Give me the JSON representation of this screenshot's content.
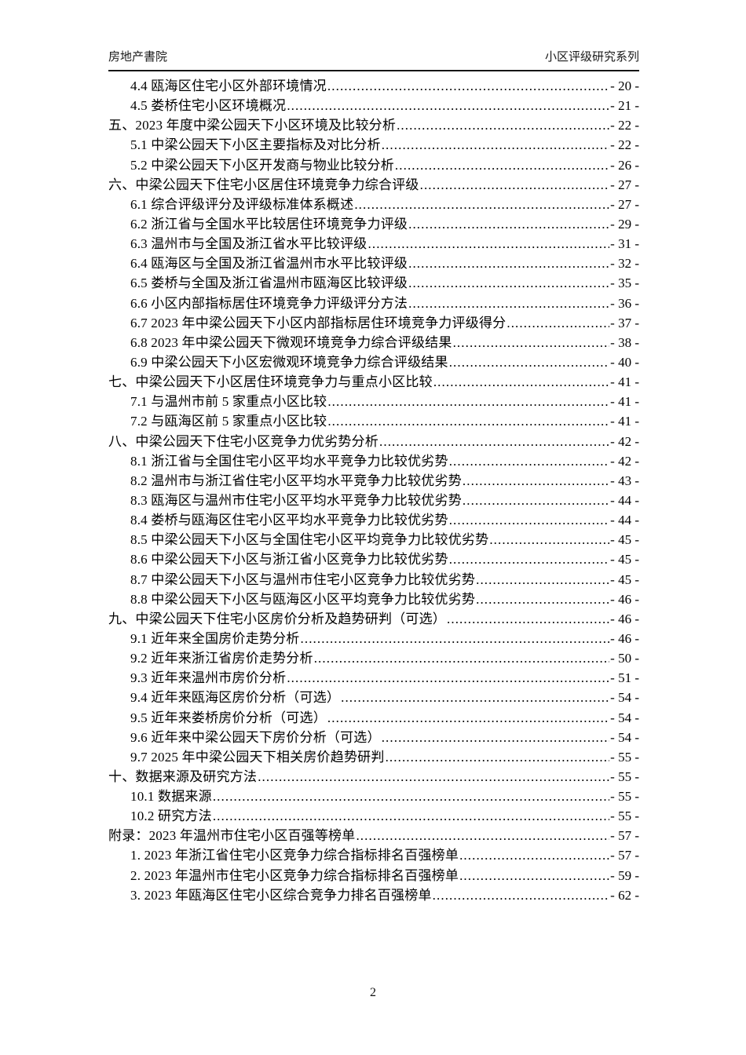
{
  "header": {
    "left": "房地产書院",
    "right": "小区评级研究系列"
  },
  "footer": {
    "page_number": "2"
  },
  "toc": {
    "entries": [
      {
        "level": 2,
        "label": "4.4 瓯海区住宅小区外部环境情况",
        "page": "- 20 -"
      },
      {
        "level": 2,
        "label": "4.5 娄桥住宅小区环境概况",
        "page": "- 21 -"
      },
      {
        "level": 1,
        "label": "五、2023 年度中梁公园天下小区环境及比较分析",
        "page": "- 22 -"
      },
      {
        "level": 2,
        "label": "5.1 中梁公园天下小区主要指标及对比分析",
        "page": "- 22 -"
      },
      {
        "level": 2,
        "label": "5.2 中梁公园天下小区开发商与物业比较分析",
        "page": "- 26 -"
      },
      {
        "level": 1,
        "label": "六、中梁公园天下住宅小区居住环境竞争力综合评级",
        "page": "- 27 -"
      },
      {
        "level": 2,
        "label": "6.1 综合评级评分及评级标准体系概述",
        "page": "- 27 -"
      },
      {
        "level": 2,
        "label": "6.2 浙江省与全国水平比较居住环境竞争力评级",
        "page": "- 29 -"
      },
      {
        "level": 2,
        "label": "6.3 温州市与全国及浙江省水平比较评级",
        "page": "- 31 -"
      },
      {
        "level": 2,
        "label": "6.4 瓯海区与全国及浙江省温州市水平比较评级",
        "page": "- 32 -"
      },
      {
        "level": 2,
        "label": "6.5 娄桥与全国及浙江省温州市瓯海区比较评级",
        "page": "- 35 -"
      },
      {
        "level": 2,
        "label": "6.6 小区内部指标居住环境竞争力评级评分方法",
        "page": "- 36 -"
      },
      {
        "level": 2,
        "label": "6.7 2023 年中梁公园天下小区内部指标居住环境竞争力评级得分",
        "page": "- 37 -"
      },
      {
        "level": 2,
        "label": "6.8 2023 年中梁公园天下微观环境竞争力综合评级结果",
        "page": "- 38 -"
      },
      {
        "level": 2,
        "label": "6.9 中梁公园天下小区宏微观环境竞争力综合评级结果",
        "page": "- 40 -"
      },
      {
        "level": 1,
        "label": "七、中梁公园天下小区居住环境竞争力与重点小区比较",
        "page": "- 41 -"
      },
      {
        "level": 2,
        "label": "7.1 与温州市前 5 家重点小区比较",
        "page": "- 41 -"
      },
      {
        "level": 2,
        "label": "7.2 与瓯海区前 5 家重点小区比较",
        "page": "- 41 -"
      },
      {
        "level": 1,
        "label": "八、中梁公园天下住宅小区竞争力优劣势分析",
        "page": "- 42 -"
      },
      {
        "level": 2,
        "label": "8.1 浙江省与全国住宅小区平均水平竞争力比较优劣势",
        "page": "- 42 -"
      },
      {
        "level": 2,
        "label": "8.2 温州市与浙江省住宅小区平均水平竞争力比较优劣势",
        "page": "- 43 -"
      },
      {
        "level": 2,
        "label": "8.3 瓯海区与温州市住宅小区平均水平竞争力比较优劣势",
        "page": "- 44 -"
      },
      {
        "level": 2,
        "label": "8.4 娄桥与瓯海区住宅小区平均水平竞争力比较优劣势",
        "page": "- 44 -"
      },
      {
        "level": 2,
        "label": "8.5 中梁公园天下小区与全国住宅小区平均竞争力比较优劣势",
        "page": "- 45 -"
      },
      {
        "level": 2,
        "label": "8.6 中梁公园天下小区与浙江省小区竞争力比较优劣势",
        "page": "- 45 -"
      },
      {
        "level": 2,
        "label": "8.7 中梁公园天下小区与温州市住宅小区竞争力比较优劣势",
        "page": "- 45 -"
      },
      {
        "level": 2,
        "label": "8.8 中梁公园天下小区与瓯海区小区平均竞争力比较优劣势",
        "page": "- 46 -"
      },
      {
        "level": 1,
        "label": "九、中梁公园天下住宅小区房价分析及趋势研判（可选）",
        "page": "- 46 -"
      },
      {
        "level": 2,
        "label": "9.1 近年来全国房价走势分析",
        "page": "- 46 -"
      },
      {
        "level": 2,
        "label": "9.2 近年来浙江省房价走势分析",
        "page": "- 50 -"
      },
      {
        "level": 2,
        "label": "9.3 近年来温州市房价分析",
        "page": "- 51 -"
      },
      {
        "level": 2,
        "label": "9.4 近年来瓯海区房价分析（可选）",
        "page": "- 54 -"
      },
      {
        "level": 2,
        "label": "9.5 近年来娄桥房价分析（可选）",
        "page": "- 54 -"
      },
      {
        "level": 2,
        "label": "9.6 近年来中梁公园天下房价分析（可选）",
        "page": "- 54 -"
      },
      {
        "level": 2,
        "label": "9.7 2025 年中梁公园天下相关房价趋势研判",
        "page": "- 55 -"
      },
      {
        "level": 1,
        "label": "十、数据来源及研究方法",
        "page": "- 55 -"
      },
      {
        "level": 2,
        "label": "10.1 数据来源",
        "page": "- 55 -"
      },
      {
        "level": 2,
        "label": "10.2 研究方法",
        "page": "- 55 -"
      },
      {
        "level": 1,
        "label": "附录：2023 年温州市住宅小区百强等榜单",
        "page": "- 57 -"
      },
      {
        "level": 2,
        "label": "1. 2023 年浙江省住宅小区竞争力综合指标排名百强榜单",
        "page": "- 57 -"
      },
      {
        "level": 2,
        "label": "2. 2023 年温州市住宅小区竞争力综合指标排名百强榜单",
        "page": "- 59 -"
      },
      {
        "level": 2,
        "label": "3. 2023 年瓯海区住宅小区综合竞争力排名百强榜单",
        "page": "- 62 -"
      }
    ]
  }
}
